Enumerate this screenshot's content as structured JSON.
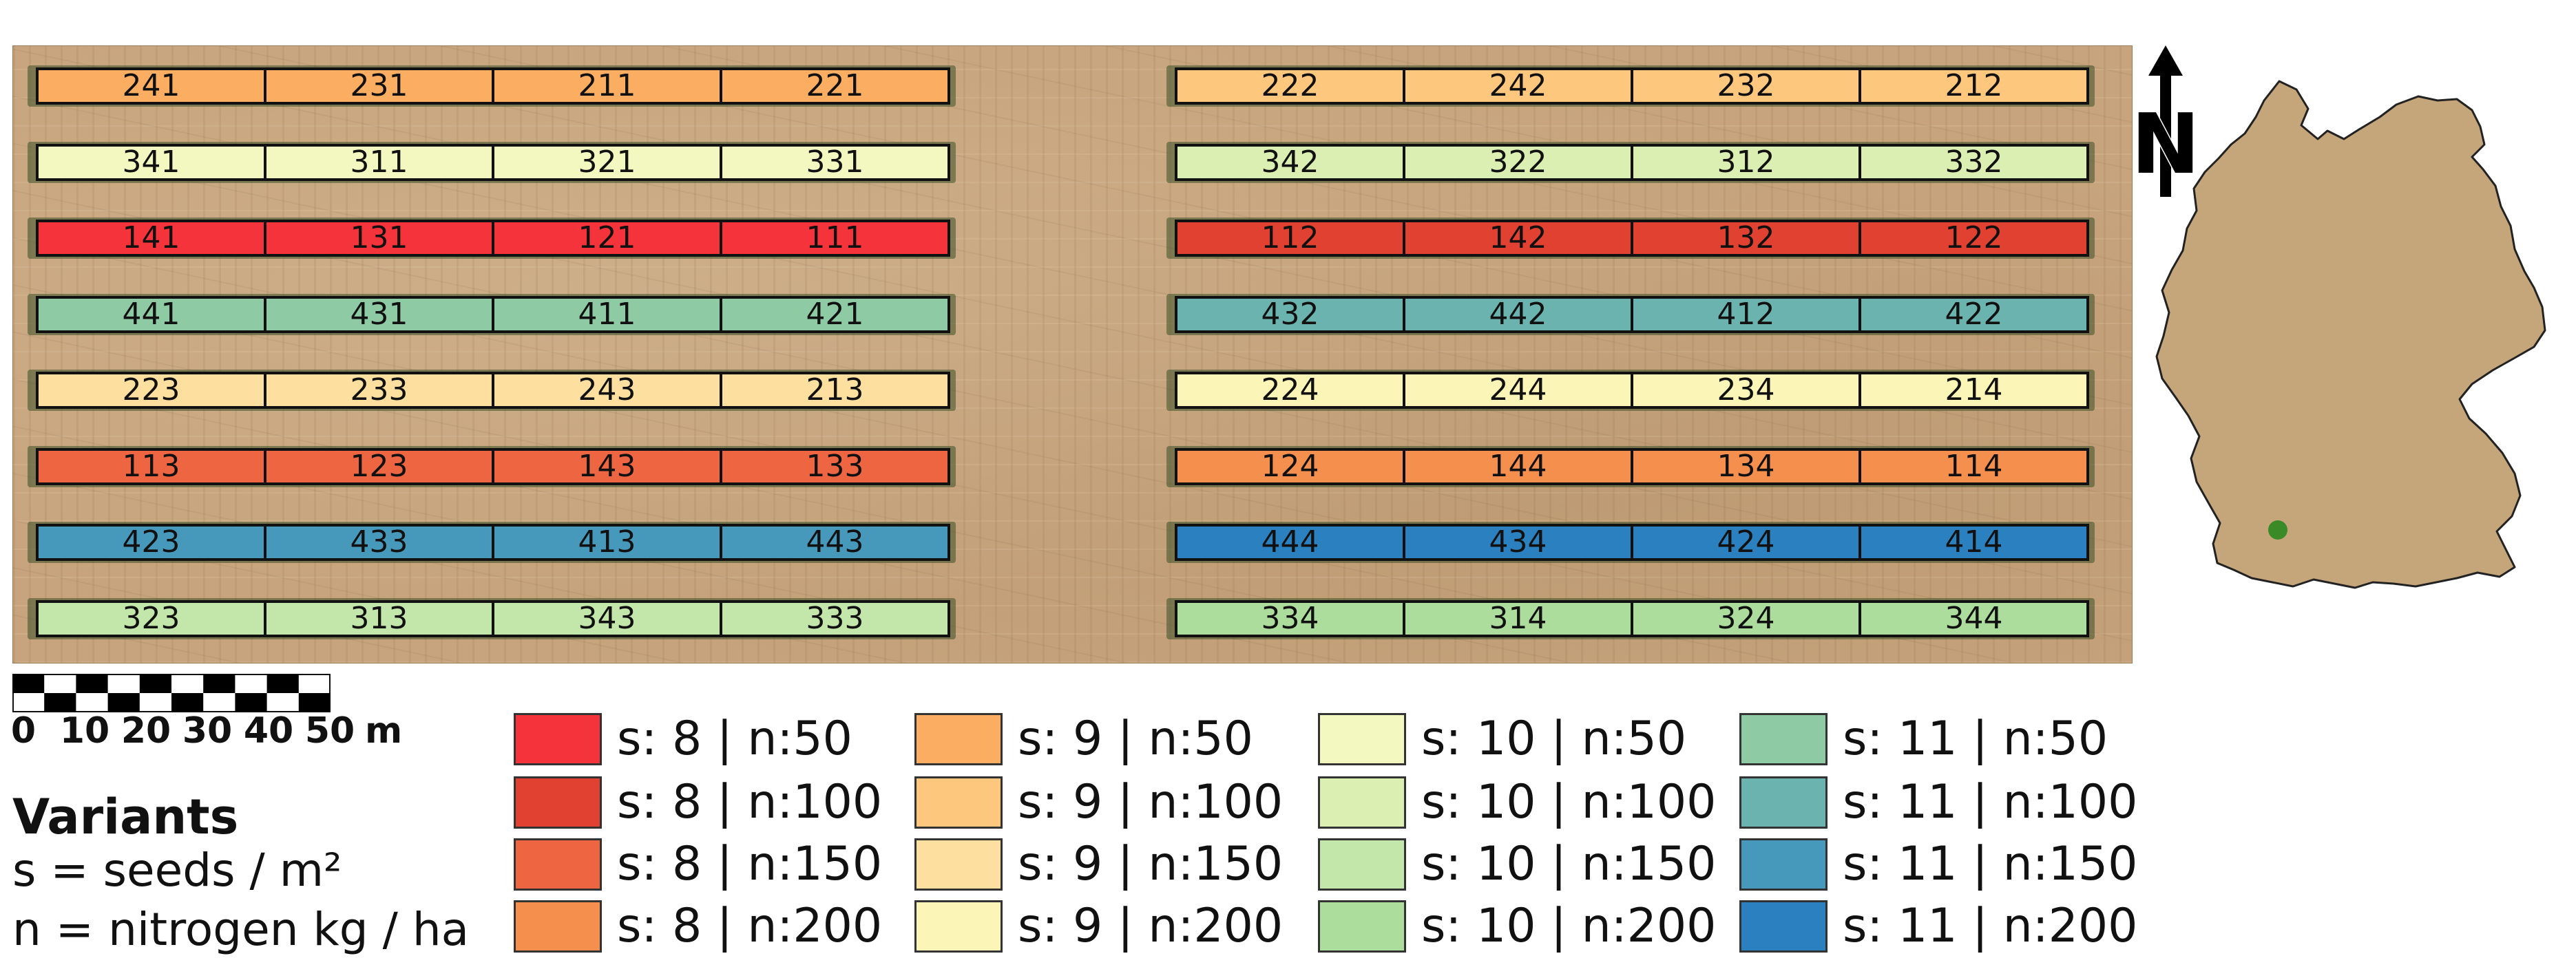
{
  "colors": {
    "s8_n50": "#f5333b",
    "s8_n100": "#e14131",
    "s8_n150": "#ee6541",
    "s8_n200": "#f58f4e",
    "s9_n50": "#fbae61",
    "s9_n100": "#fdc77d",
    "s9_n150": "#fde0a0",
    "s9_n200": "#fbf6b7",
    "s10_n50": "#f2f8c0",
    "s10_n100": "#dbefb3",
    "s10_n150": "#c3e6aa",
    "s10_n200": "#addd9c",
    "s11_n50": "#8ecba4",
    "s11_n100": "#6ab3ae",
    "s11_n150": "#4799bc",
    "s11_n200": "#2b81bf",
    "germany": "#c5a57a",
    "location_marker": "#3a8a28"
  },
  "plots": {
    "left_block": [
      [
        "241",
        "231",
        "211",
        "221"
      ],
      [
        "341",
        "311",
        "321",
        "331"
      ],
      [
        "141",
        "131",
        "121",
        "111"
      ],
      [
        "441",
        "431",
        "411",
        "421"
      ],
      [
        "223",
        "233",
        "243",
        "213"
      ],
      [
        "113",
        "123",
        "143",
        "133"
      ],
      [
        "423",
        "433",
        "413",
        "443"
      ],
      [
        "323",
        "313",
        "343",
        "333"
      ]
    ],
    "right_block": [
      [
        "222",
        "242",
        "232",
        "212"
      ],
      [
        "342",
        "322",
        "312",
        "332"
      ],
      [
        "112",
        "142",
        "132",
        "122"
      ],
      [
        "432",
        "442",
        "412",
        "422"
      ],
      [
        "224",
        "244",
        "234",
        "214"
      ],
      [
        "124",
        "144",
        "134",
        "114"
      ],
      [
        "444",
        "434",
        "424",
        "414"
      ],
      [
        "334",
        "314",
        "324",
        "344"
      ]
    ]
  },
  "scale_bar": {
    "labels": [
      "0",
      "10",
      "20",
      "30",
      "40",
      "50"
    ],
    "unit": "m"
  },
  "north_arrow": {
    "label": "N"
  },
  "variants": {
    "title": "Variants",
    "s_definition": "s = seeds / m²",
    "n_definition": "n = nitrogen kg / ha"
  },
  "legend": {
    "items": [
      {
        "label": "s: 8 | n:50",
        "color_key": "s8_n50"
      },
      {
        "label": "s: 8 | n:100",
        "color_key": "s8_n100"
      },
      {
        "label": "s: 8 | n:150",
        "color_key": "s8_n150"
      },
      {
        "label": "s: 8 | n:200",
        "color_key": "s8_n200"
      },
      {
        "label": "s: 9 | n:50",
        "color_key": "s9_n50"
      },
      {
        "label": "s: 9 | n:100",
        "color_key": "s9_n100"
      },
      {
        "label": "s: 9 | n:150",
        "color_key": "s9_n150"
      },
      {
        "label": "s: 9 | n:200",
        "color_key": "s9_n200"
      },
      {
        "label": "s: 10 | n:50",
        "color_key": "s10_n50"
      },
      {
        "label": "s: 10 | n:100",
        "color_key": "s10_n100"
      },
      {
        "label": "s: 10 | n:150",
        "color_key": "s10_n150"
      },
      {
        "label": "s: 10 | n:200",
        "color_key": "s10_n200"
      },
      {
        "label": "s: 11 | n:50",
        "color_key": "s11_n50"
      },
      {
        "label": "s: 11 | n:100",
        "color_key": "s11_n100"
      },
      {
        "label": "s: 11 | n:150",
        "color_key": "s11_n150"
      },
      {
        "label": "s: 11 | n:200",
        "color_key": "s11_n200"
      }
    ]
  }
}
